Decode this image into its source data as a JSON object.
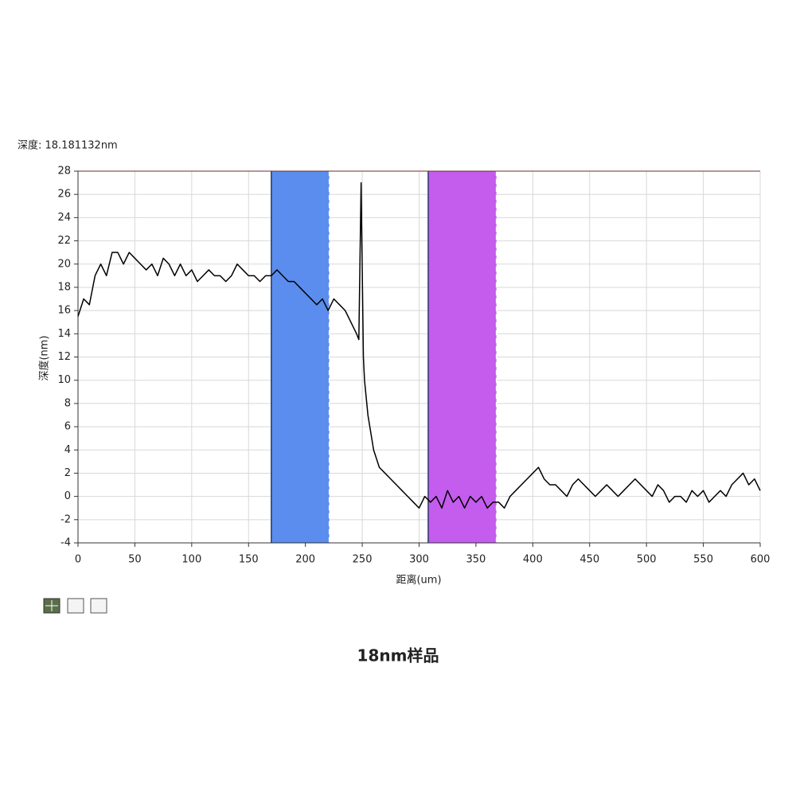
{
  "chart_data": {
    "type": "line",
    "annotation": "深度: 18.181132nm",
    "xlabel": "距离(um)",
    "ylabel": "深度(nm)",
    "caption": "18nm样品",
    "color": "#000000",
    "grid": true,
    "xlim": [
      0,
      600
    ],
    "xticks": [
      0,
      50,
      100,
      150,
      200,
      250,
      300,
      350,
      400,
      450,
      500,
      550,
      600
    ],
    "ylim": [
      -4,
      28
    ],
    "yticks": [
      -4,
      -2,
      0,
      2,
      4,
      6,
      8,
      10,
      12,
      14,
      16,
      18,
      20,
      22,
      24,
      26,
      28
    ],
    "bands": [
      {
        "x0": 170,
        "x1": 221,
        "color": "#5b8def"
      },
      {
        "x0": 308,
        "x1": 368,
        "color": "#c45ced"
      }
    ],
    "x": [
      0,
      5,
      10,
      15,
      20,
      25,
      30,
      35,
      40,
      45,
      50,
      55,
      60,
      65,
      70,
      75,
      80,
      85,
      90,
      95,
      100,
      105,
      110,
      115,
      120,
      125,
      130,
      135,
      140,
      145,
      150,
      155,
      160,
      165,
      170,
      175,
      180,
      185,
      190,
      195,
      200,
      205,
      210,
      215,
      220,
      225,
      230,
      235,
      240,
      245,
      247,
      249,
      251,
      252,
      255,
      260,
      265,
      270,
      275,
      280,
      285,
      290,
      295,
      300,
      305,
      310,
      315,
      320,
      325,
      330,
      335,
      340,
      345,
      350,
      355,
      360,
      365,
      370,
      375,
      380,
      385,
      390,
      395,
      400,
      405,
      410,
      415,
      420,
      425,
      430,
      435,
      440,
      445,
      450,
      455,
      460,
      465,
      470,
      475,
      480,
      485,
      490,
      495,
      500,
      505,
      510,
      515,
      520,
      525,
      530,
      535,
      540,
      545,
      550,
      555,
      560,
      565,
      570,
      575,
      580,
      585,
      590,
      595,
      600
    ],
    "values": [
      15.5,
      17,
      16.5,
      19,
      20,
      19,
      21,
      21,
      20,
      21,
      20.5,
      20,
      19.5,
      20,
      19,
      20.5,
      20,
      19,
      20,
      19,
      19.5,
      18.5,
      19,
      19.5,
      19,
      19,
      18.5,
      19,
      20,
      19.5,
      19,
      19,
      18.5,
      19,
      19,
      19.5,
      19,
      18.5,
      18.5,
      18,
      17.5,
      17,
      16.5,
      17,
      16,
      17,
      16.5,
      16,
      15,
      14,
      13.5,
      27,
      12,
      10,
      7,
      4,
      2.5,
      2,
      1.5,
      1,
      0.5,
      0,
      -0.5,
      -1,
      0,
      -0.5,
      0,
      -1,
      0.5,
      -0.5,
      0,
      -1,
      0,
      -0.5,
      0,
      -1,
      -0.5,
      -0.5,
      -1,
      0,
      0.5,
      1,
      1.5,
      2,
      2.5,
      1.5,
      1,
      1,
      0.5,
      0,
      1,
      1.5,
      1,
      0.5,
      0,
      0.5,
      1,
      0.5,
      0,
      0.5,
      1,
      1.5,
      1,
      0.5,
      0,
      1,
      0.5,
      -0.5,
      0,
      0,
      -0.5,
      0.5,
      0,
      0.5,
      -0.5,
      0,
      0.5,
      0,
      1,
      1.5,
      2,
      1,
      1.5,
      0.5
    ]
  }
}
